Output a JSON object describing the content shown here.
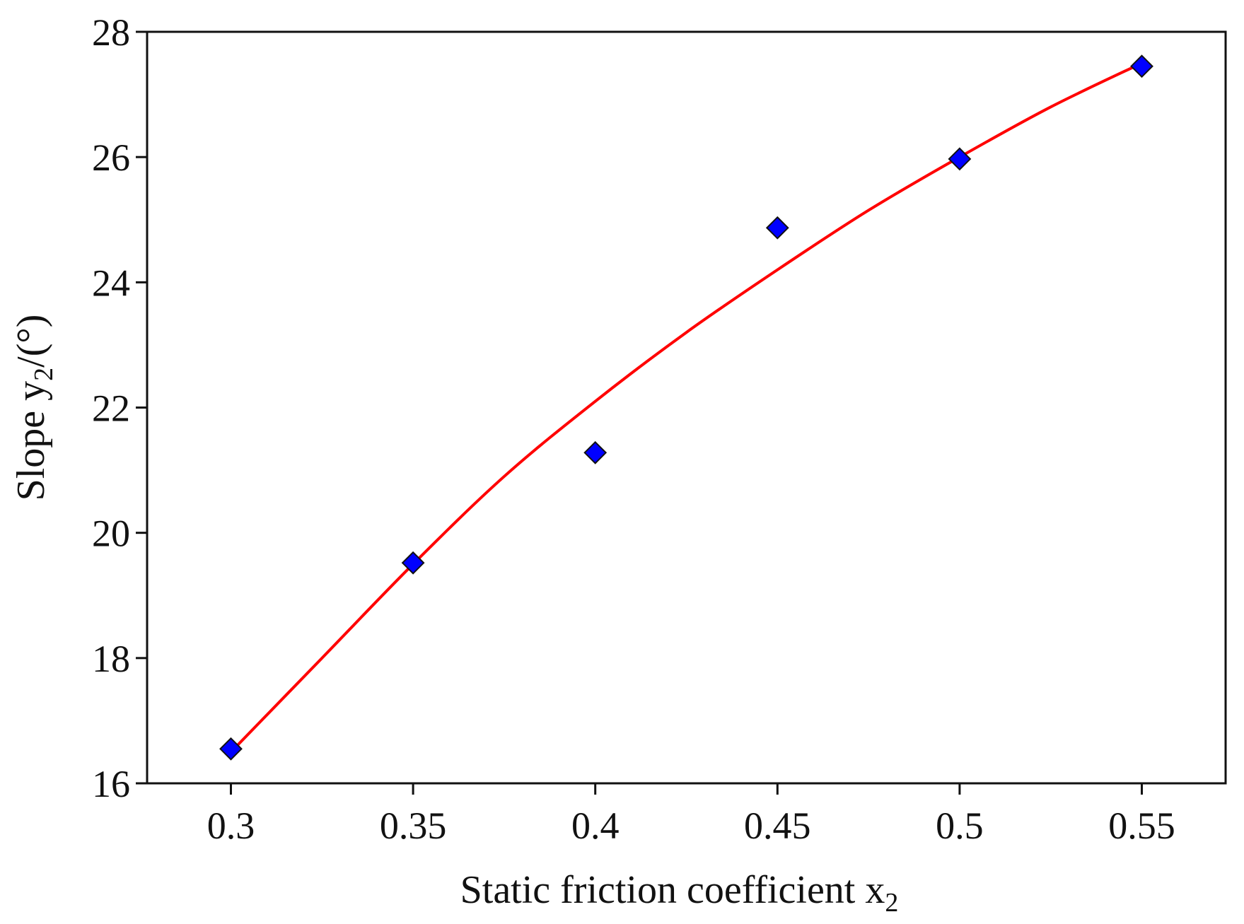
{
  "chart_data": {
    "type": "scatter",
    "title": "",
    "xlabel": "Static friction coefficient x",
    "xlabel_subscript": "2",
    "ylabel_prefix": "Slope y",
    "ylabel_subscript": "2",
    "ylabel_suffix": "/(°)",
    "xlim": [
      0.277,
      0.573
    ],
    "ylim": [
      16,
      28
    ],
    "x_ticks": [
      0.3,
      0.35,
      0.4,
      0.45,
      0.5,
      0.55
    ],
    "x_tick_labels": [
      "0.3",
      "0.35",
      "0.4",
      "0.45",
      "0.5",
      "0.55"
    ],
    "y_ticks": [
      16,
      18,
      20,
      22,
      24,
      26,
      28
    ],
    "y_tick_labels": [
      "16",
      "18",
      "20",
      "22",
      "24",
      "26",
      "28"
    ],
    "grid": false,
    "legend": "none",
    "series": [
      {
        "kind": "points",
        "marker": "diamond",
        "color": "#0000ff",
        "x": [
          0.3,
          0.35,
          0.4,
          0.45,
          0.5,
          0.55
        ],
        "y": [
          16.55,
          19.52,
          21.28,
          24.87,
          25.97,
          27.45
        ]
      },
      {
        "kind": "fitted-curve",
        "color": "#ff0000",
        "x": [
          0.3,
          0.325,
          0.35,
          0.375,
          0.4,
          0.425,
          0.45,
          0.475,
          0.5,
          0.525,
          0.55
        ],
        "y": [
          16.5,
          18.0,
          19.5,
          20.9,
          22.1,
          23.2,
          24.2,
          25.15,
          26.0,
          26.8,
          27.5
        ]
      }
    ]
  }
}
